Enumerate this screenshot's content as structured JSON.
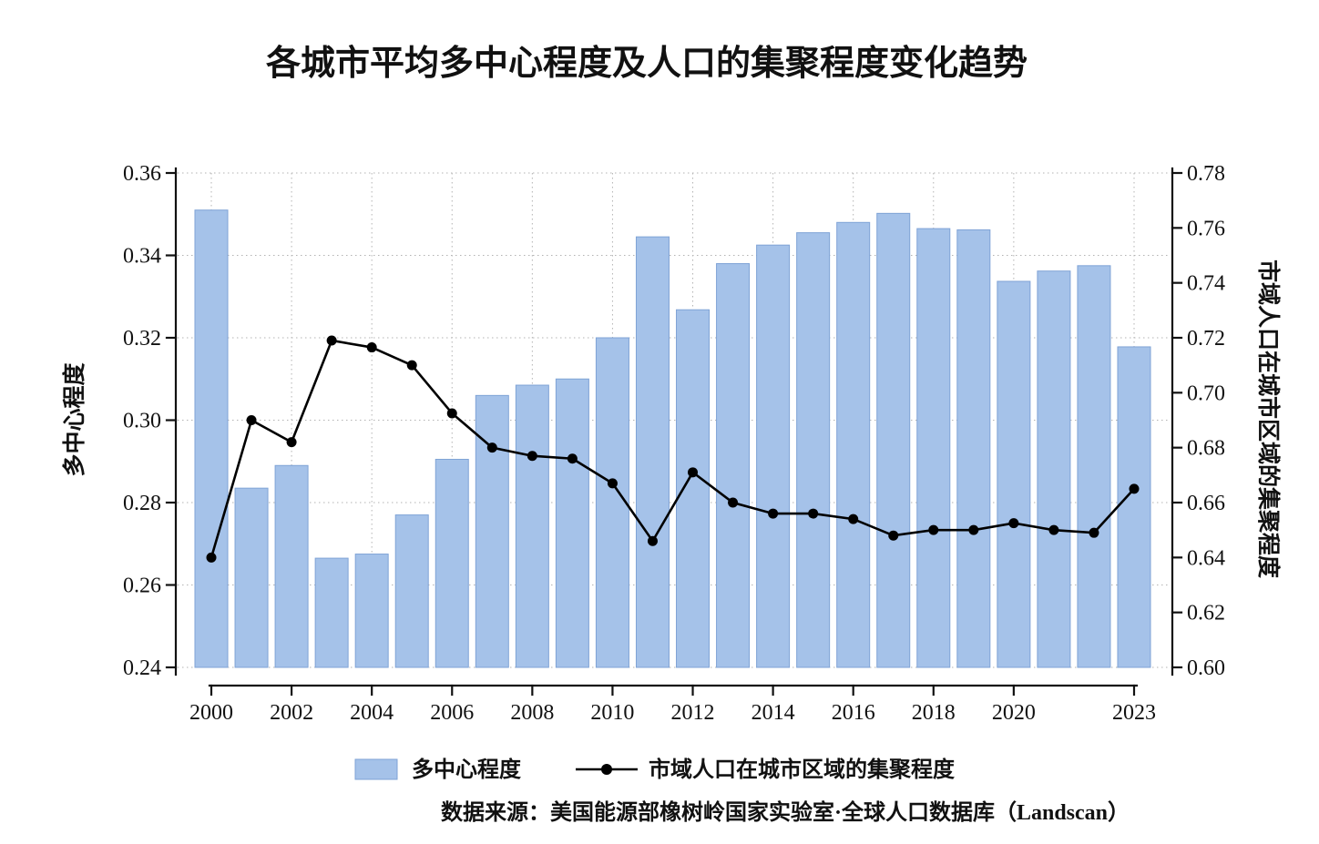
{
  "title": "各城市平均多中心程度及人口的集聚程度变化趋势",
  "source": "数据来源：美国能源部橡树岭国家实验室·全球人口数据库（Landscan）",
  "legend": {
    "bar_label": "多中心程度",
    "line_label": "市域人口在城市区域的集聚程度"
  },
  "chart_data": {
    "type": "bar+line",
    "categories": [
      2000,
      2001,
      2002,
      2003,
      2004,
      2005,
      2006,
      2007,
      2008,
      2009,
      2010,
      2011,
      2012,
      2013,
      2014,
      2015,
      2016,
      2017,
      2018,
      2019,
      2020,
      2021,
      2022,
      2023
    ],
    "x_tick_years": [
      2000,
      2002,
      2004,
      2006,
      2008,
      2010,
      2012,
      2014,
      2016,
      2018,
      2020,
      2023
    ],
    "left_axis": {
      "label": "多中心程度",
      "min": 0.24,
      "max": 0.36,
      "ticks": [
        0.24,
        0.26,
        0.28,
        0.3,
        0.32,
        0.34,
        0.36
      ]
    },
    "right_axis": {
      "label": "市域人口在城市区域的集聚程度",
      "min": 0.6,
      "max": 0.78,
      "ticks": [
        0.6,
        0.62,
        0.64,
        0.66,
        0.68,
        0.7,
        0.72,
        0.74,
        0.76,
        0.78
      ]
    },
    "grid": true,
    "series": [
      {
        "name": "多中心程度",
        "type": "bar",
        "axis": "left",
        "color": "#a5c2e9",
        "border_color": "#7fa3d6",
        "values": [
          0.351,
          0.2835,
          0.289,
          0.2665,
          0.2675,
          0.277,
          0.2905,
          0.306,
          0.3085,
          0.31,
          0.32,
          0.3445,
          0.3268,
          0.338,
          0.3425,
          0.3455,
          0.348,
          0.3502,
          0.3465,
          0.3462,
          0.3337,
          0.3362,
          0.3375,
          0.3178
        ]
      },
      {
        "name": "市域人口在城市区域的集聚程度",
        "type": "line",
        "axis": "right",
        "color": "#000000",
        "values": [
          0.64,
          0.69,
          0.682,
          0.719,
          0.7165,
          0.71,
          0.6925,
          0.68,
          0.677,
          0.676,
          0.667,
          0.646,
          0.671,
          0.66,
          0.656,
          0.656,
          0.654,
          0.648,
          0.65,
          0.65,
          0.6525,
          0.65,
          0.649,
          0.665
        ]
      }
    ]
  }
}
